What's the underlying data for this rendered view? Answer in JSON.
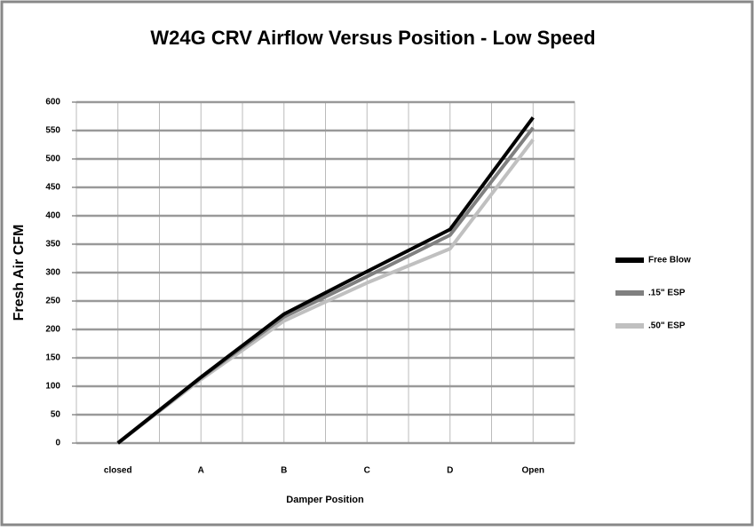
{
  "chart_data": {
    "type": "line",
    "title": "W24G CRV Airflow Versus Position - Low Speed",
    "y_label": "Fresh Air CFM",
    "x_label": "Damper Position",
    "categories": [
      "closed",
      "A",
      "B",
      "C",
      "D",
      "Open"
    ],
    "series": [
      {
        "name": "Free Blow",
        "color": "#000000",
        "values": [
          0,
          116,
          227,
          302,
          376,
          573
        ]
      },
      {
        "name": ".15\" ESP",
        "color": "#808080",
        "values": [
          0,
          115,
          222,
          293,
          366,
          555
        ]
      },
      {
        "name": ".50\" ESP",
        "color": "#c0c0c0",
        "values": [
          0,
          112,
          215,
          282,
          342,
          534
        ]
      }
    ],
    "ylim": [
      0,
      600
    ],
    "yticks": [
      0,
      50,
      100,
      150,
      200,
      250,
      300,
      350,
      400,
      450,
      500,
      550,
      600
    ],
    "grid": true,
    "legend": "right"
  }
}
